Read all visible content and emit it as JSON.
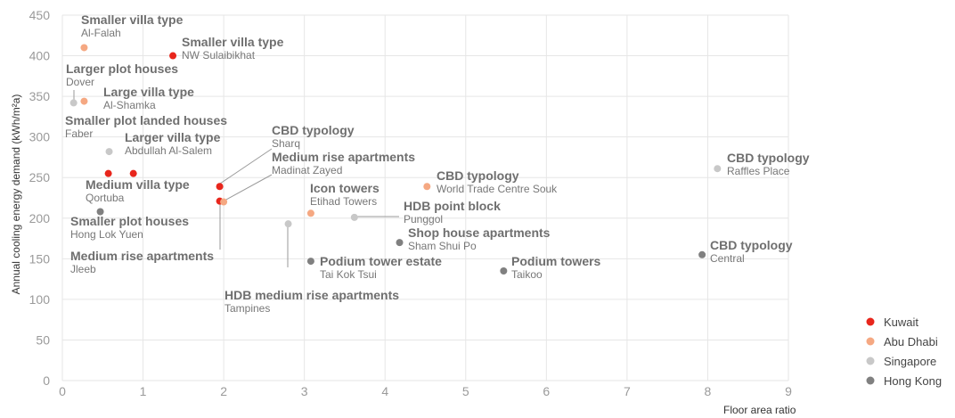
{
  "chart_data": {
    "type": "scatter",
    "xlabel": "Floor area ratio",
    "ylabel": "Annual cooling energy demand (kWh/m²a)",
    "xlim": [
      0,
      9
    ],
    "ylim": [
      0,
      450
    ],
    "x_ticks": [
      "0",
      "1",
      "2",
      "3",
      "4",
      "5",
      "6",
      "7",
      "8",
      "9"
    ],
    "y_ticks": [
      "0",
      "50",
      "100",
      "150",
      "200",
      "250",
      "300",
      "350",
      "400",
      "450"
    ],
    "grid": true,
    "legend_position": "bottom-right",
    "series": [
      {
        "name": "Kuwait",
        "color": "#e8261c",
        "points": [
          {
            "x": 1.37,
            "y": 400,
            "title": "Smaller villa type",
            "place": "NW Sulaibikhat"
          },
          {
            "x": 0.57,
            "y": 255,
            "title": "Medium villa type",
            "place": "Qortuba"
          },
          {
            "x": 0.88,
            "y": 255,
            "title": "Larger villa type",
            "place": "Abdullah Al-Salem"
          },
          {
            "x": 1.95,
            "y": 239,
            "title": "CBD typology",
            "place": "Sharq"
          },
          {
            "x": 1.95,
            "y": 221,
            "title": "Medium rise apartments",
            "place": "Jleeb"
          }
        ]
      },
      {
        "name": "Abu Dhabi",
        "color": "#f5a882",
        "points": [
          {
            "x": 0.27,
            "y": 410,
            "title": "Smaller villa type",
            "place": "Al-Falah"
          },
          {
            "x": 0.27,
            "y": 344,
            "title": "Large villa type",
            "place": "Al-Shamka"
          },
          {
            "x": 2.0,
            "y": 220,
            "title": "Medium rise apartments",
            "place": "Madinat Zayed"
          },
          {
            "x": 3.08,
            "y": 206,
            "title": "Icon towers",
            "place": "Etihad Towers"
          },
          {
            "x": 4.52,
            "y": 239,
            "title": "CBD typology",
            "place": "World Trade Centre Souk"
          }
        ]
      },
      {
        "name": "Singapore",
        "color": "#c8c8c8",
        "points": [
          {
            "x": 0.14,
            "y": 342,
            "title": "Larger plot houses",
            "place": "Dover"
          },
          {
            "x": 0.58,
            "y": 282,
            "title": "Smaller plot landed houses",
            "place": "Faber"
          },
          {
            "x": 2.8,
            "y": 193,
            "title": "HDB medium rise apartments",
            "place": "Tampines"
          },
          {
            "x": 3.62,
            "y": 201,
            "title": "HDB point block",
            "place": "Punggol"
          },
          {
            "x": 8.12,
            "y": 261,
            "title": "CBD typology",
            "place": "Raffles Place"
          }
        ]
      },
      {
        "name": "Hong Kong",
        "color": "#808080",
        "points": [
          {
            "x": 0.47,
            "y": 208,
            "title": "Smaller plot houses",
            "place": "Hong Lok Yuen"
          },
          {
            "x": 3.08,
            "y": 147,
            "title": "Podium tower estate",
            "place": "Tai Kok Tsui"
          },
          {
            "x": 4.18,
            "y": 170,
            "title": "Shop house apartments",
            "place": "Sham Shui Po"
          },
          {
            "x": 5.47,
            "y": 135,
            "title": "Podium towers",
            "place": "Taikoo"
          },
          {
            "x": 7.93,
            "y": 155,
            "title": "CBD typology",
            "place": "Central"
          }
        ]
      }
    ]
  }
}
